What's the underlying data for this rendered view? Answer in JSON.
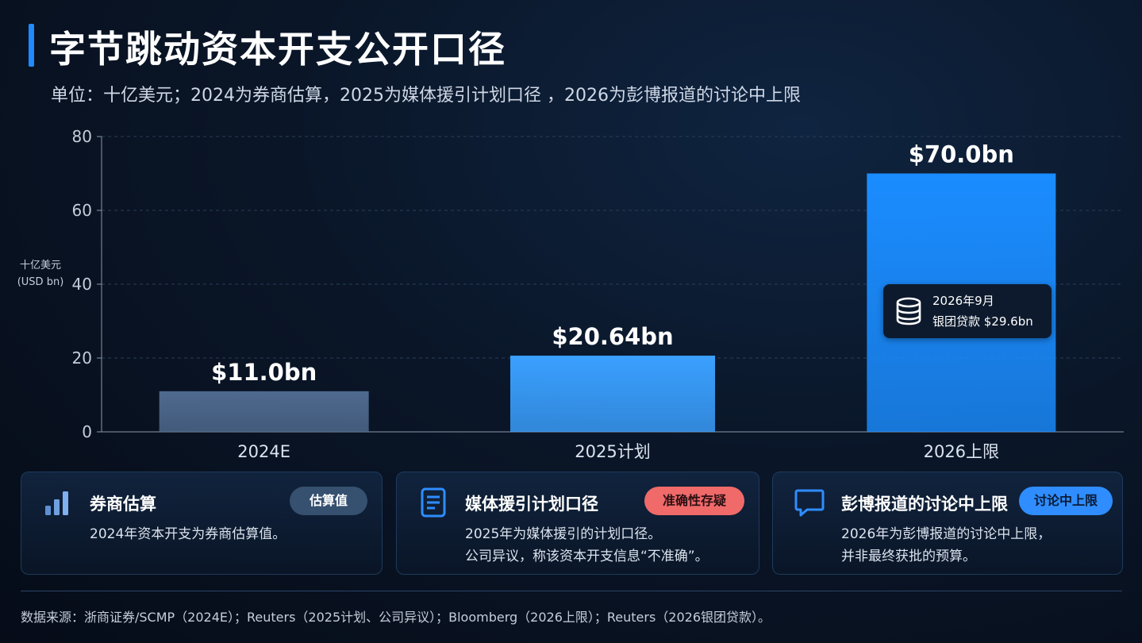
{
  "header": {
    "title": "字节跳动资本开支公开口径",
    "subtitle": "单位：十亿美元；2024为券商估算，2025为媒体援引计划口径 ，2026为彭博报道的讨论中上限"
  },
  "chart_data": {
    "type": "bar",
    "categories": [
      "2024E",
      "2025计划",
      "2026上限"
    ],
    "values": [
      11.0,
      20.64,
      70.0
    ],
    "value_labels": [
      "$11.0bn",
      "$20.64bn",
      "$70.0bn"
    ],
    "bar_colors": [
      "#4f6a8f",
      "#3aa0ff",
      "#1a8cff"
    ],
    "ylabel_line1": "十亿美元",
    "ylabel_line2": "(USD bn)",
    "ylim": [
      0,
      80
    ],
    "yticks": [
      0,
      20,
      40,
      60,
      80
    ],
    "grid": true,
    "annotation": {
      "category": "2026上限",
      "icon": "coins-stack-icon",
      "line1": "2026年9月",
      "line2": "银团贷款 $29.6bn"
    }
  },
  "cards": [
    {
      "icon": "bar-chart-icon",
      "title": "券商估算",
      "badge": "估算值",
      "badge_bg": "#36506f",
      "badge_fg": "#ffffff",
      "line1": "2024年资本开支为券商估算值。",
      "line2": ""
    },
    {
      "icon": "document-icon",
      "title": "媒体援引计划口径",
      "badge": "准确性存疑",
      "badge_bg": "#f06a6a",
      "badge_fg": "#2a0f12",
      "line1": "2025年为媒体援引的计划口径。",
      "line2": "公司异议，称该资本开支信息“不准确”。"
    },
    {
      "icon": "chat-bubble-icon",
      "title": "彭博报道的讨论中上限",
      "badge": "讨论中上限",
      "badge_bg": "#2f8dff",
      "badge_fg": "#0a1a33",
      "line1": "2026年为彭博报道的讨论中上限，",
      "line2": "并非最终获批的预算。"
    }
  ],
  "footer": {
    "source": "数据来源：浙商证券/SCMP（2024E）；Reuters（2025计划、公司异议）；Bloomberg（2026上限）；Reuters（2026银团贷款）。"
  },
  "accent": "#1f8bff"
}
